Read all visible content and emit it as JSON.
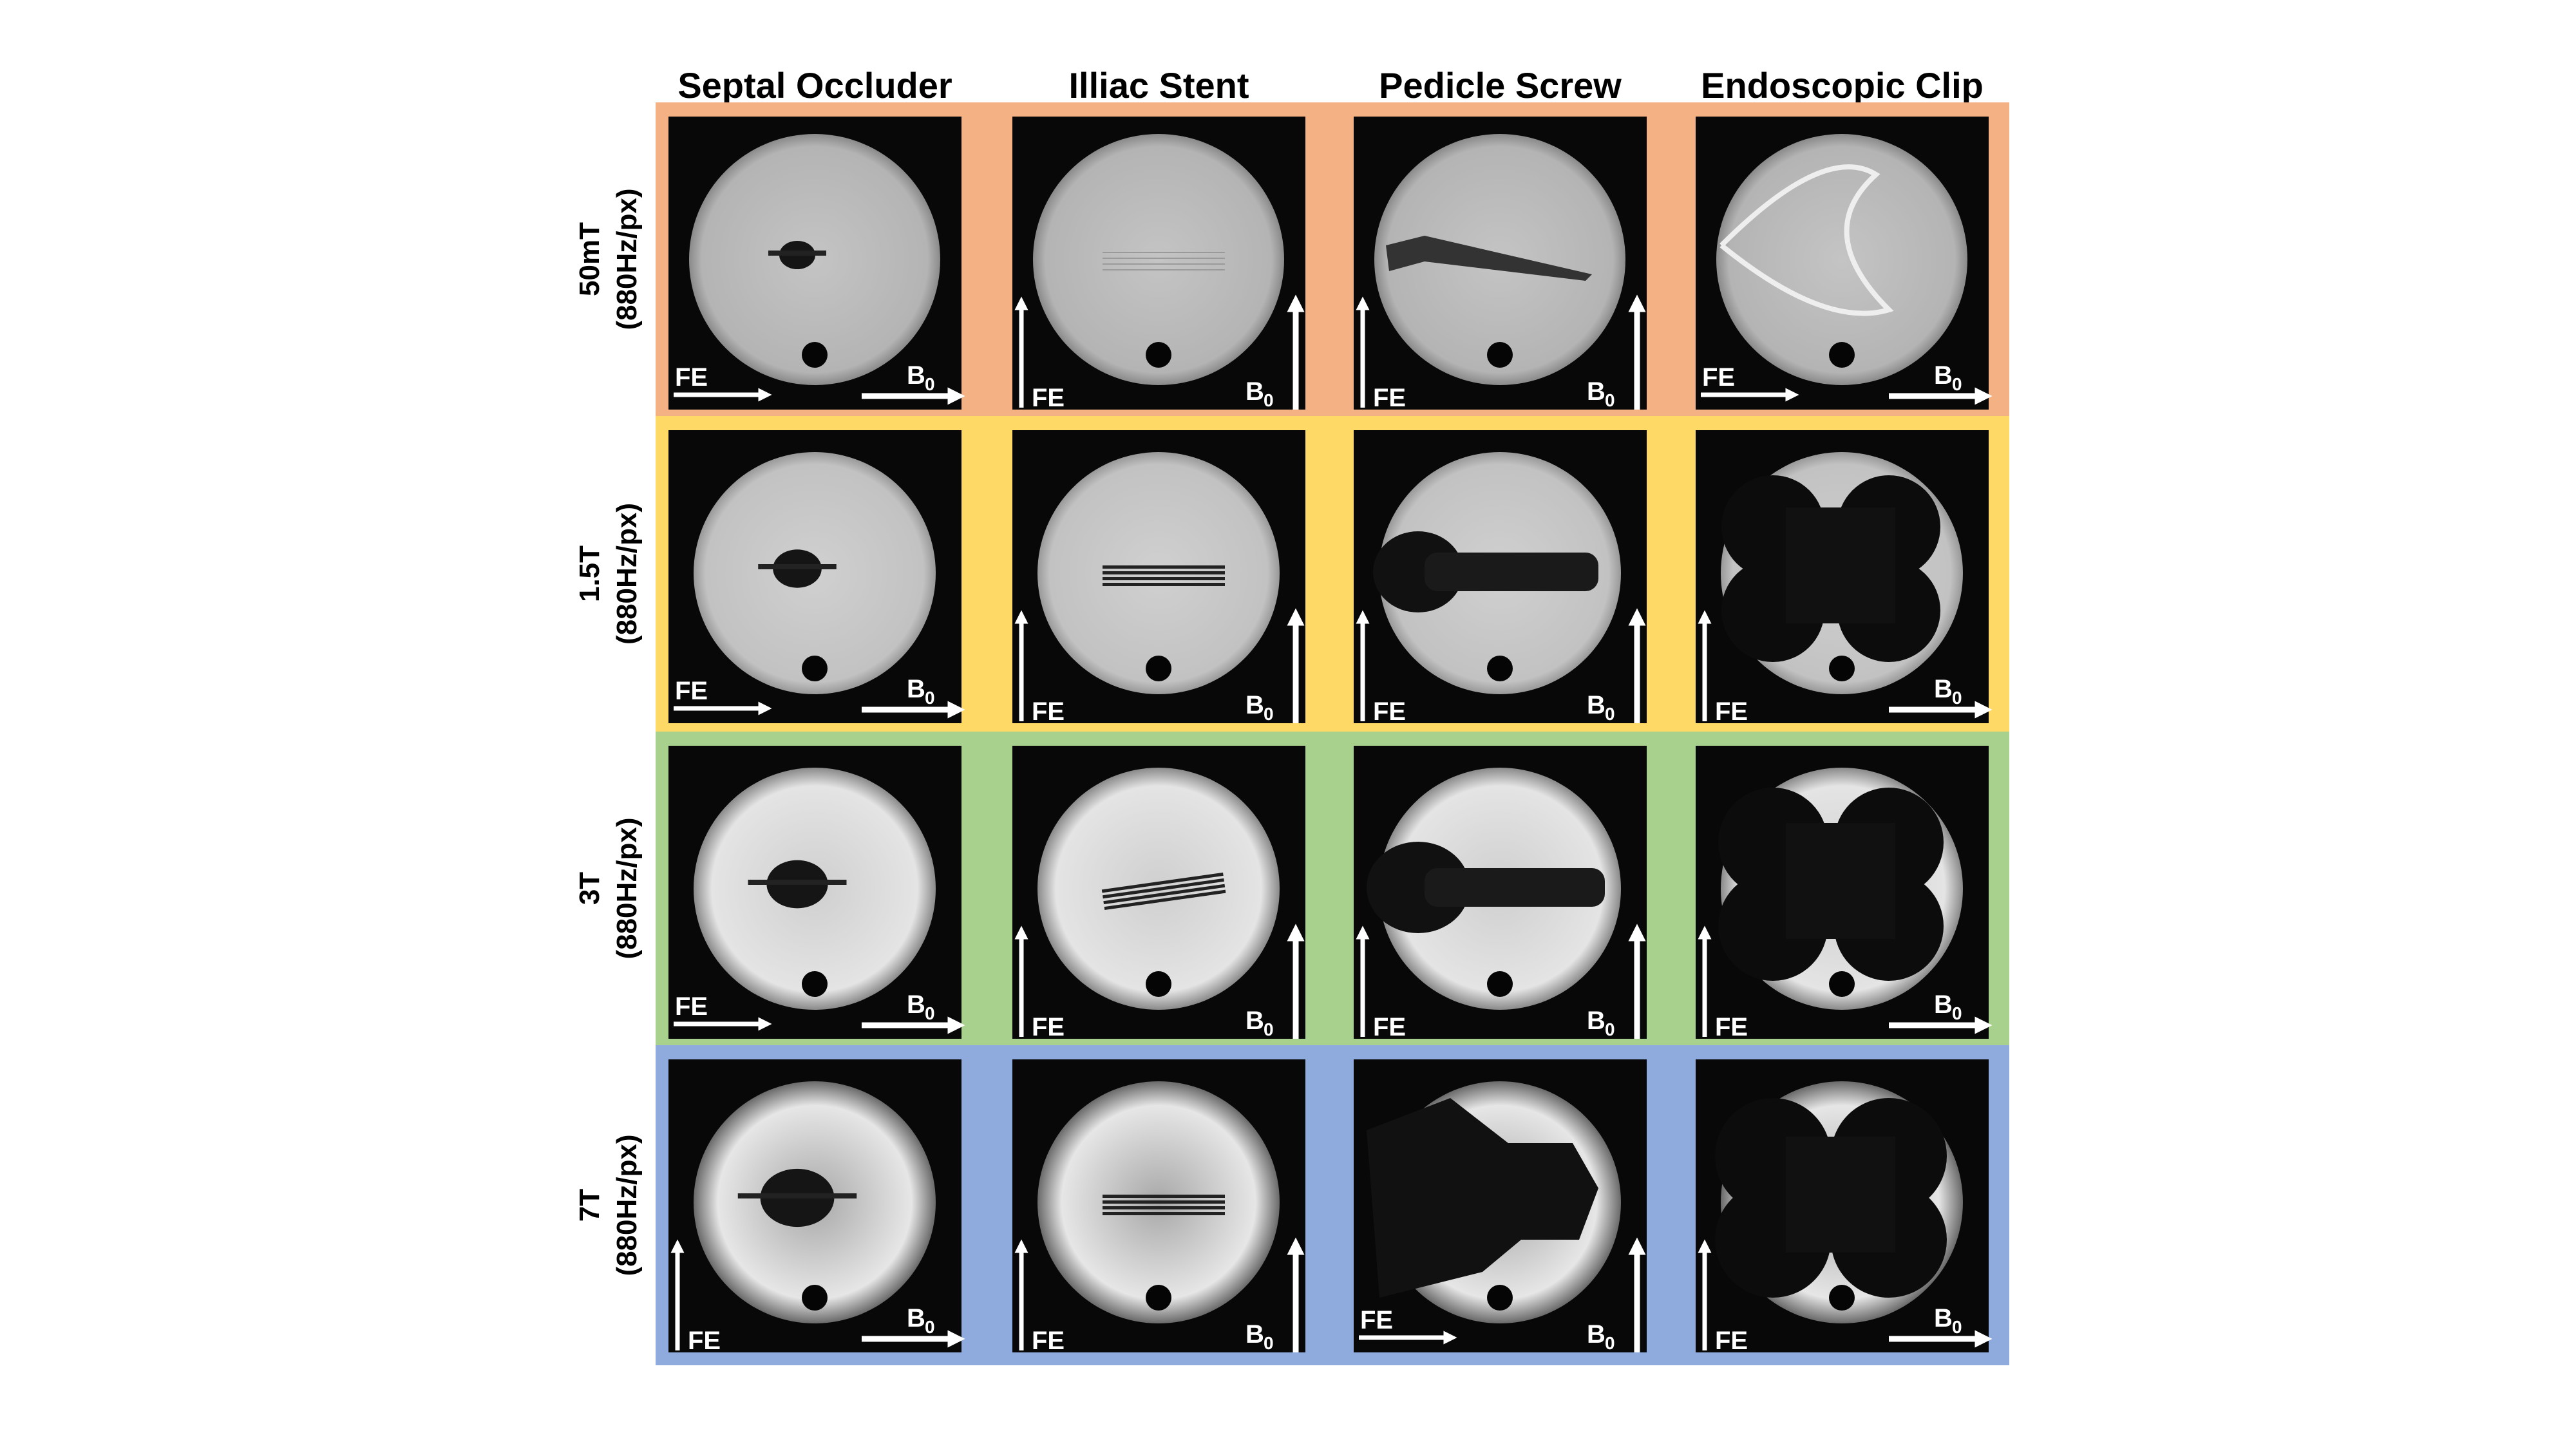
{
  "figure": {
    "columns": [
      "Septal Occluder",
      "Illiac Stent",
      "Pedicle Screw",
      "Endoscopic Clip"
    ],
    "rows": [
      {
        "field": "50mT",
        "bandwidth": "(880Hz/px)",
        "color": "#f4b183",
        "fe_direction": [
          "right",
          "up",
          "up",
          "right"
        ],
        "b0_direction": [
          "right",
          "up",
          "up",
          "right"
        ]
      },
      {
        "field": "1.5T",
        "bandwidth": "(880Hz/px)",
        "color": "#ffd966",
        "fe_direction": [
          "right",
          "up",
          "up",
          "up"
        ],
        "b0_direction": [
          "right",
          "up",
          "up",
          "right"
        ]
      },
      {
        "field": "3T",
        "bandwidth": "(880Hz/px)",
        "color": "#a9d18e",
        "fe_direction": [
          "right",
          "up",
          "up",
          "up"
        ],
        "b0_direction": [
          "right",
          "up",
          "up",
          "right"
        ]
      },
      {
        "field": "7T",
        "bandwidth": "(880Hz/px)",
        "color": "#8faadc",
        "fe_direction": [
          "up",
          "up",
          "right",
          "up"
        ],
        "b0_direction": [
          "right",
          "up",
          "up",
          "right"
        ]
      }
    ],
    "labels": {
      "fe": "FE",
      "b": "B",
      "b_sub": "0"
    }
  }
}
